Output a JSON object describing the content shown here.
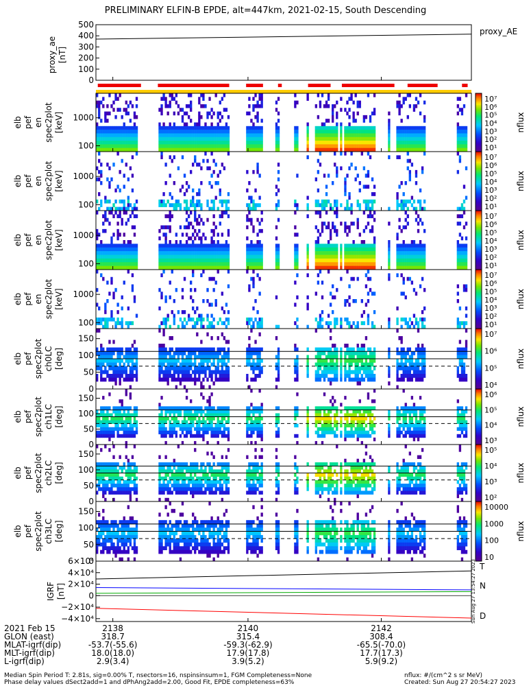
{
  "title": "PRELIMINARY ELFIN-B EPDE, alt=447km, 2021-02-15, South Descending",
  "panels": [
    {
      "ylabel": [
        "proxy_ae",
        "[nT]"
      ],
      "ticks": [
        "500",
        "400",
        "300",
        "200",
        "100",
        "0"
      ],
      "side_label": "proxy_AE"
    },
    {
      "ylabel": [
        "elb",
        "pef",
        "en",
        "spec2plot",
        "[keV]"
      ],
      "ticks": [
        "1000",
        "100"
      ],
      "cbar_ticks": [
        "10⁷",
        "10⁶",
        "10⁵",
        "10⁴",
        "10³",
        "10²",
        "10¹"
      ],
      "cbar_label": "nflux"
    },
    {
      "ylabel": [
        "elb",
        "pef",
        "en",
        "spec2plot",
        "[keV]"
      ],
      "ticks": [
        "1000",
        "100"
      ],
      "cbar_ticks": [
        "10⁷",
        "10⁶",
        "10⁵",
        "10⁴",
        "10³",
        "10²",
        "10¹"
      ],
      "cbar_label": "nflux"
    },
    {
      "ylabel": [
        "elb",
        "pef",
        "en",
        "spec2plot",
        "[keV]"
      ],
      "ticks": [
        "1000",
        "100"
      ],
      "cbar_ticks": [
        "10⁷",
        "10⁶",
        "10⁵",
        "10⁴",
        "10³",
        "10²",
        "10¹"
      ],
      "cbar_label": "nflux"
    },
    {
      "ylabel": [
        "elb",
        "pef",
        "en",
        "spec2plot",
        "[keV]"
      ],
      "ticks": [
        "1000",
        "100"
      ],
      "cbar_ticks": [
        "10⁷",
        "10⁶",
        "10⁵",
        "10⁴",
        "10³",
        "10²",
        "10¹"
      ],
      "cbar_label": "nflux"
    },
    {
      "ylabel": [
        "elb",
        "pef",
        "spec2plot",
        "ch0LC",
        "[deg]"
      ],
      "ticks": [
        "150",
        "100",
        "50",
        "0"
      ],
      "cbar_ticks": [
        "10⁷",
        "10⁶",
        "10⁵",
        "10⁴"
      ],
      "cbar_label": "nflux"
    },
    {
      "ylabel": [
        "elb",
        "pef",
        "spec2plot",
        "ch1LC",
        "[deg]"
      ],
      "ticks": [
        "150",
        "100",
        "50",
        "0"
      ],
      "cbar_ticks": [
        "10⁶",
        "10⁵",
        "10⁴",
        "10³"
      ],
      "cbar_label": "nflux"
    },
    {
      "ylabel": [
        "elb",
        "pef",
        "spec2plot",
        "ch2LC",
        "[deg]"
      ],
      "ticks": [
        "150",
        "100",
        "50",
        "0"
      ],
      "cbar_ticks": [
        "10⁵",
        "10⁴",
        "10³",
        "10²"
      ],
      "cbar_label": "nflux"
    },
    {
      "ylabel": [
        "elb",
        "pef",
        "spec2plot",
        "ch3LC",
        "[deg]"
      ],
      "ticks": [
        "150",
        "100",
        "50",
        "0"
      ],
      "cbar_ticks": [
        "10000",
        "1000",
        "100",
        "10"
      ],
      "cbar_label": "nflux"
    },
    {
      "ylabel": [
        "IGRF",
        "[nT]"
      ],
      "ticks": [
        "6×10⁴",
        "4×10⁴",
        "2×10⁴",
        "0",
        "−2×10⁴",
        "−4×10⁴"
      ],
      "legend": [
        "T",
        "N",
        "D"
      ],
      "stamp": "Sun Aug 27 13:54:27 2023"
    }
  ],
  "footer": {
    "rows": [
      {
        "label": "2021 Feb 15",
        "values": [
          "2138",
          "2140",
          "2142"
        ]
      },
      {
        "label": "GLON (east)",
        "values": [
          "318.7",
          "315.4",
          "308.4"
        ]
      },
      {
        "label": "MLAT-igrf(dip)",
        "values": [
          "-53.7(-55.6)",
          "-59.3(-62.9)",
          "-65.5(-70.0)"
        ]
      },
      {
        "label": "MLT-igrf(dip)",
        "values": [
          "18.0(18.0)",
          "17.9(17.8)",
          "17.7(17.3)"
        ]
      },
      {
        "label": "L-igrf(dip)",
        "values": [
          "2.9(3.4)",
          "3.9(5.2)",
          "5.9(9.2)"
        ]
      }
    ],
    "note1": "Median Spin Period T: 2.81s, sig=0.00% T, nsectors=16, nspinsinsum=1, FGM Completeness=None",
    "note2": "Phase delay values dSect2add=1 and dPhAng2add=2.00, Good Fit, EPDE completeness=63%",
    "nflux_units": "nflux: #/(cm^2 s sr MeV)",
    "created": "Created: Sun Aug 27 20:54:27 2023"
  },
  "chart_data": {
    "type": "heatmap",
    "title": "PRELIMINARY ELFIN-B EPDE, alt=447km, 2021-02-15, South Descending",
    "x_time_ticks": [
      "2138",
      "2140",
      "2142"
    ],
    "proxy_ae": {
      "ylabel": "proxy_ae [nT]",
      "ylim": [
        0,
        500
      ],
      "start": 370,
      "end": 415
    },
    "igrf": {
      "ylabel": "IGRF [nT]",
      "ylim": [
        -45000,
        60000
      ],
      "series": [
        {
          "name": "T",
          "color": "#000000",
          "start": 29000,
          "end": 43000
        },
        {
          "name": "N",
          "color": "#0000ff",
          "start": 14000,
          "end": 10000
        },
        {
          "name": "D",
          "color": "#00aa00",
          "start": 4000,
          "end": 7000
        },
        {
          "name": "",
          "color": "#ff0000",
          "start": -22000,
          "end": -39000
        }
      ]
    }
  }
}
